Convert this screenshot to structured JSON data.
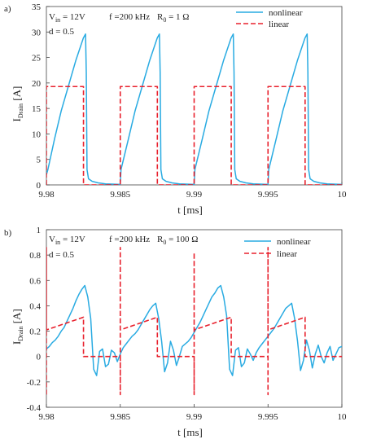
{
  "chart_data": [
    {
      "type": "line",
      "panel_label": "a)",
      "xlabel": "t [ms]",
      "ylabel_main": "I",
      "ylabel_sub": "Drain",
      "ylabel_unit": " [A]",
      "xlim": [
        9.98,
        10
      ],
      "ylim": [
        0,
        35
      ],
      "xticks": [
        9.98,
        9.985,
        9.99,
        9.995,
        10
      ],
      "xtick_labels": [
        "9.98",
        "9.985",
        "9.99",
        "9.995",
        "10"
      ],
      "yticks": [
        0,
        5,
        10,
        15,
        20,
        25,
        30,
        35
      ],
      "ytick_labels": [
        "0",
        "5",
        "10",
        "15",
        "20",
        "25",
        "30",
        "35"
      ],
      "grid": false,
      "legend_position": "top-right",
      "annotations": [
        {
          "main": "V",
          "sub": "in",
          "rest": " = 12V"
        },
        {
          "main": "f =200 kHz",
          "sub": "",
          "rest": ""
        },
        {
          "main": "R",
          "sub": "0",
          "rest": " = 1 Ω"
        },
        {
          "main": "d = 0.5",
          "sub": "",
          "rest": ""
        }
      ],
      "series": [
        {
          "name": "nonlinear",
          "color": "#29abe2",
          "style": "solid",
          "x": [
            9.98,
            9.9801,
            9.98055,
            9.981,
            9.9815,
            9.982,
            9.9825,
            9.98265,
            9.9827,
            9.98275,
            9.98285,
            9.9831,
            9.9835,
            9.984,
            9.985,
            9.98505,
            9.98555,
            9.986,
            9.9865,
            9.987,
            9.9875,
            9.98765,
            9.9877,
            9.98775,
            9.98785,
            9.9881,
            9.9885,
            9.989,
            9.99,
            9.99005,
            9.99055,
            9.991,
            9.9915,
            9.992,
            9.9925,
            9.99265,
            9.9927,
            9.99275,
            9.99285,
            9.9931,
            9.9935,
            9.994,
            9.995,
            9.99505,
            9.99555,
            9.996,
            9.9965,
            9.997,
            9.9975,
            9.99765,
            9.9977,
            9.99775,
            9.99785,
            9.9981,
            9.9985,
            9.999,
            10
          ],
          "y": [
            2.0,
            3.0,
            9.0,
            14.5,
            19.5,
            24.5,
            28.8,
            29.6,
            22,
            3,
            1.2,
            0.7,
            0.4,
            0.2,
            0.1,
            3.0,
            9.0,
            14.5,
            19.5,
            24.5,
            28.8,
            29.6,
            22,
            3,
            1.2,
            0.7,
            0.4,
            0.2,
            0.1,
            3.0,
            9.0,
            14.5,
            19.5,
            24.5,
            28.8,
            29.6,
            22,
            3,
            1.2,
            0.7,
            0.4,
            0.2,
            0.1,
            3.0,
            9.0,
            14.5,
            19.5,
            24.5,
            28.8,
            29.6,
            22,
            3,
            1.2,
            0.7,
            0.4,
            0.2,
            0.1
          ]
        },
        {
          "name": "linear",
          "color": "#e8212d",
          "style": "dashed",
          "x": [
            9.98,
            9.98,
            9.98251,
            9.98251,
            9.985,
            9.985,
            9.98751,
            9.98751,
            9.99,
            9.99,
            9.99251,
            9.99251,
            9.995,
            9.995,
            9.99751,
            9.99751,
            10
          ],
          "y": [
            0,
            19.3,
            19.3,
            0,
            0,
            19.3,
            19.3,
            0,
            0,
            19.3,
            19.3,
            0,
            0,
            19.3,
            19.3,
            0,
            0
          ]
        }
      ]
    },
    {
      "type": "line",
      "panel_label": "b)",
      "xlabel": "t [ms]",
      "ylabel_main": "I",
      "ylabel_sub": "Drain",
      "ylabel_unit": " [A]",
      "xlim": [
        9.98,
        10
      ],
      "ylim": [
        -0.4,
        1
      ],
      "xticks": [
        9.98,
        9.985,
        9.99,
        9.995,
        10
      ],
      "xtick_labels": [
        "9.98",
        "9.985",
        "9.99",
        "9.995",
        "10"
      ],
      "yticks": [
        -0.4,
        -0.2,
        0,
        0.2,
        0.4,
        0.6,
        0.8,
        1
      ],
      "ytick_labels": [
        "-0.4",
        "-0.2",
        "0",
        "0.2",
        "0.4",
        "0.6",
        "0.8",
        "1"
      ],
      "grid": false,
      "legend_position": "top-right",
      "annotations": [
        {
          "main": "V",
          "sub": "in",
          "rest": " = 12V"
        },
        {
          "main": "f =200 kHz",
          "sub": "",
          "rest": ""
        },
        {
          "main": "R",
          "sub": "0",
          "rest": " = 100 Ω"
        },
        {
          "main": "d = 0.5",
          "sub": "",
          "rest": ""
        }
      ],
      "series": [
        {
          "name": "nonlinear",
          "color": "#29abe2",
          "style": "solid",
          "x": [
            9.98,
            9.9802,
            9.9804,
            9.9806,
            9.9808,
            9.981,
            9.9812,
            9.9814,
            9.9816,
            9.9818,
            9.982,
            9.9822,
            9.9824,
            9.9826,
            9.9828,
            9.983,
            9.9832,
            9.9834,
            9.9836,
            9.9838,
            9.984,
            9.9842,
            9.9844,
            9.9846,
            9.9848,
            9.985,
            9.9852,
            9.9854,
            9.9856,
            9.9858,
            9.986,
            9.9862,
            9.9864,
            9.9866,
            9.9868,
            9.987,
            9.9872,
            9.9874,
            9.9876,
            9.9878,
            9.988,
            9.9882,
            9.9884,
            9.9886,
            9.9888,
            9.989,
            9.9892,
            9.9894,
            9.9896,
            9.9898,
            9.99,
            9.9902,
            9.9904,
            9.9906,
            9.9908,
            9.991,
            9.9912,
            9.9914,
            9.9916,
            9.9918,
            9.992,
            9.9922,
            9.9924,
            9.9926,
            9.9928,
            9.993,
            9.9932,
            9.9934,
            9.9936,
            9.9938,
            9.994,
            9.9942,
            9.9944,
            9.9946,
            9.9948,
            9.995,
            9.9952,
            9.9954,
            9.9956,
            9.9958,
            9.996,
            9.9962,
            9.9964,
            9.9966,
            9.9968,
            9.997,
            9.9972,
            9.9974,
            9.9976,
            9.9978,
            9.998,
            9.9982,
            9.9984,
            9.9986,
            9.9988,
            9.999,
            9.9992,
            9.9994,
            9.9996,
            9.9998,
            10
          ],
          "y": [
            0.06,
            0.08,
            0.11,
            0.13,
            0.16,
            0.2,
            0.23,
            0.28,
            0.33,
            0.38,
            0.44,
            0.49,
            0.53,
            0.56,
            0.47,
            0.3,
            -0.1,
            -0.15,
            0.04,
            0.06,
            -0.08,
            -0.06,
            0.05,
            0.03,
            -0.04,
            0.02,
            0.07,
            0.1,
            0.13,
            0.16,
            0.18,
            0.21,
            0.25,
            0.29,
            0.33,
            0.37,
            0.4,
            0.42,
            0.3,
            0.12,
            -0.12,
            -0.05,
            0.12,
            0.05,
            -0.07,
            0.0,
            0.08,
            0.1,
            0.12,
            0.15,
            0.19,
            0.23,
            0.27,
            0.32,
            0.37,
            0.42,
            0.47,
            0.5,
            0.54,
            0.56,
            0.47,
            0.32,
            -0.1,
            -0.15,
            0.05,
            0.07,
            -0.08,
            -0.05,
            0.06,
            0.02,
            -0.03,
            0.03,
            0.07,
            0.1,
            0.13,
            0.16,
            0.19,
            0.22,
            0.26,
            0.3,
            0.34,
            0.38,
            0.4,
            0.42,
            0.3,
            0.12,
            -0.11,
            -0.03,
            0.13,
            0.05,
            -0.09,
            0.02,
            0.09,
            0.0,
            -0.05,
            0.03,
            0.08,
            -0.03,
            0.02,
            0.07,
            0.08
          ]
        },
        {
          "name": "linear",
          "color": "#e8212d",
          "style": "dashed",
          "x": [
            9.98,
            9.98,
            9.98,
            9.98,
            9.98251,
            9.98251,
            9.985,
            9.985,
            9.985,
            9.985,
            9.98751,
            9.98751,
            9.99,
            9.99,
            9.99,
            9.99,
            9.99251,
            9.99251,
            9.995,
            9.995,
            9.995,
            9.995,
            9.99751,
            9.99751,
            10
          ],
          "y": [
            -0.3,
            0.86,
            0.21,
            0.21,
            0.31,
            0.0,
            0.0,
            -0.3,
            0.86,
            0.21,
            0.31,
            0.0,
            0.0,
            -0.3,
            0.82,
            0.21,
            0.31,
            0.0,
            0.0,
            -0.3,
            0.86,
            0.21,
            0.31,
            0.0,
            0.0
          ]
        }
      ]
    }
  ]
}
